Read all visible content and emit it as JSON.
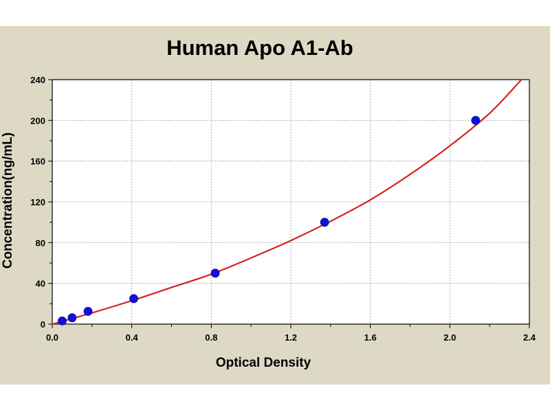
{
  "chart_data": {
    "type": "scatter",
    "title": "Human Apo A1-Ab",
    "xlabel": "Optical Density",
    "ylabel": "Concentration(ng/mL)",
    "xlim": [
      0.0,
      2.4
    ],
    "ylim": [
      0,
      240
    ],
    "x_ticks": [
      "0.0",
      "0.4",
      "0.8",
      "1.2",
      "1.6",
      "2.0",
      "2.4"
    ],
    "y_ticks": [
      "0",
      "40",
      "80",
      "120",
      "160",
      "200",
      "240"
    ],
    "grid": true,
    "legend": "none",
    "series": [
      {
        "kind": "points",
        "color": "#1010e0",
        "x": [
          0.05,
          0.1,
          0.18,
          0.41,
          0.82,
          1.37,
          2.13
        ],
        "y": [
          3.1,
          6.2,
          12.5,
          25,
          50,
          100,
          200
        ]
      },
      {
        "kind": "fit-curve",
        "color": "#d42020",
        "x": [
          0.0,
          0.2,
          0.4,
          0.6,
          0.8,
          1.0,
          1.2,
          1.4,
          1.6,
          1.8,
          2.0,
          2.2,
          2.36
        ],
        "y": [
          0,
          11,
          23,
          36,
          49,
          65,
          82,
          101,
          122,
          147,
          175,
          207,
          240
        ]
      }
    ]
  }
}
